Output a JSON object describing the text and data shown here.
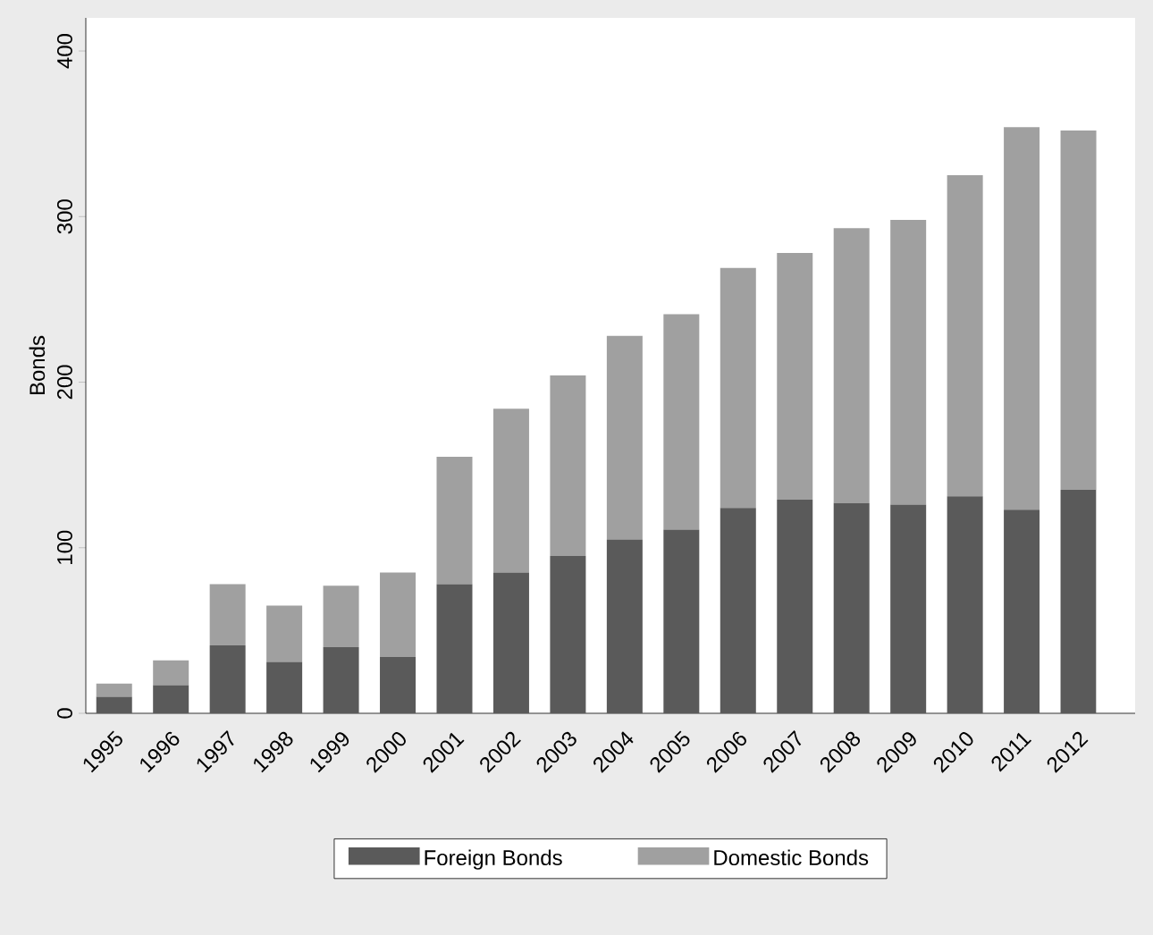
{
  "chart_data": {
    "type": "bar",
    "stacked": true,
    "ylabel": "Bonds",
    "categories": [
      "1995",
      "1996",
      "1997",
      "1998",
      "1999",
      "2000",
      "2001",
      "2002",
      "2003",
      "2004",
      "2005",
      "2006",
      "2007",
      "2008",
      "2009",
      "2010",
      "2011",
      "2012"
    ],
    "series": [
      {
        "name": "Foreign Bonds",
        "color": "#5a5a5a",
        "values": [
          10,
          17,
          41,
          31,
          40,
          34,
          78,
          85,
          95,
          105,
          111,
          124,
          129,
          127,
          126,
          131,
          123,
          135
        ]
      },
      {
        "name": "Domestic Bonds",
        "color": "#a0a0a0",
        "values": [
          8,
          15,
          37,
          34,
          37,
          51,
          77,
          99,
          109,
          123,
          130,
          145,
          149,
          166,
          172,
          194,
          231,
          217
        ]
      }
    ],
    "ylim": [
      0,
      420
    ],
    "yticks": [
      0,
      100,
      200,
      300,
      400
    ],
    "grid": false,
    "legend": "bottom"
  }
}
